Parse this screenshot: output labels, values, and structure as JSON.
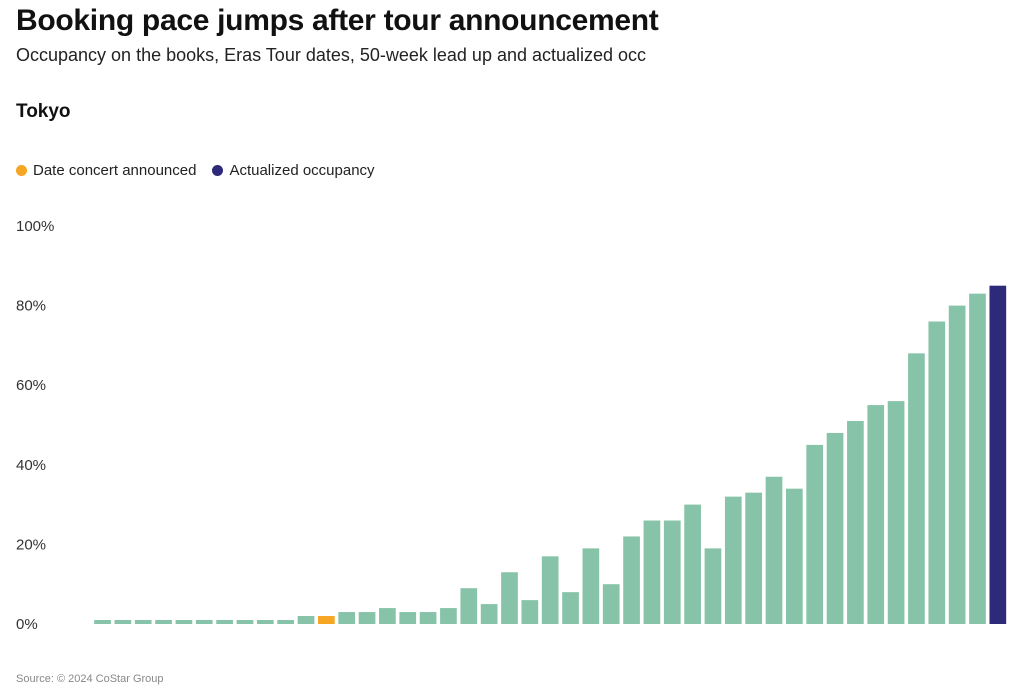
{
  "title": "Booking pace jumps after tour announcement",
  "subtitle": "Occupancy on the books, Eras Tour dates, 50-week lead up and actualized occ",
  "panel_label": "Tokyo",
  "legend": [
    {
      "label": "Date concert announced",
      "color": "#F5A623"
    },
    {
      "label": "Actualized occupancy",
      "color": "#2E2A7A"
    }
  ],
  "source": "Source: © 2024 CoStar Group",
  "chart_data": {
    "type": "bar",
    "title": "Tokyo",
    "xlabel": "",
    "ylabel": "",
    "ylim": [
      0,
      100
    ],
    "y_ticks": [
      0,
      20,
      40,
      60,
      80,
      100
    ],
    "y_tick_labels": [
      "0%",
      "20%",
      "40%",
      "60%",
      "80%",
      "100%"
    ],
    "slots": 46,
    "values": [
      1,
      1,
      1,
      1,
      1,
      1,
      1,
      1,
      1,
      1,
      2,
      2,
      3,
      3,
      4,
      3,
      3,
      4,
      9,
      5,
      13,
      6,
      17,
      8,
      19,
      10,
      22,
      26,
      26,
      30,
      19,
      32,
      33,
      37,
      34,
      45,
      48,
      51,
      55,
      56,
      68,
      76,
      80,
      83,
      85
    ],
    "default_color": "#86C3A8",
    "announced_index": 11,
    "announced_color": "#F5A623",
    "actual_index": 44,
    "actual_color": "#2E2A7A",
    "grid": false
  }
}
